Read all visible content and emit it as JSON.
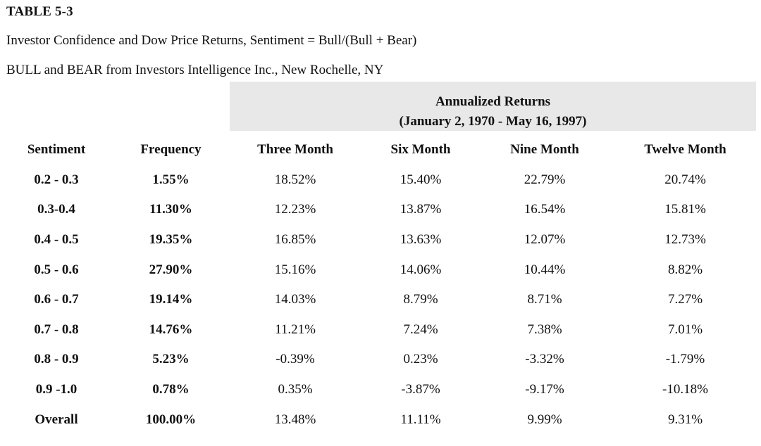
{
  "document": {
    "table_label": "TABLE 5-3",
    "caption": "Investor Confidence and Dow Price Returns, Sentiment = Bull/(Bull + Bear)",
    "source": "BULL and BEAR from Investors Intelligence Inc., New Rochelle, NY"
  },
  "table": {
    "group_header": {
      "line1": "Annualized Returns",
      "line2": "(January 2, 1970 - May 16, 1997)"
    },
    "columns": [
      "Sentiment",
      "Frequency",
      "Three Month",
      "Six Month",
      "Nine Month",
      "Twelve Month"
    ],
    "rows": [
      [
        "0.2 - 0.3",
        "1.55%",
        "18.52%",
        "15.40%",
        "22.79%",
        "20.74%"
      ],
      [
        "0.3-0.4",
        "11.30%",
        "12.23%",
        "13.87%",
        "16.54%",
        "15.81%"
      ],
      [
        "0.4 - 0.5",
        "19.35%",
        "16.85%",
        "13.63%",
        "12.07%",
        "12.73%"
      ],
      [
        "0.5 - 0.6",
        "27.90%",
        "15.16%",
        "14.06%",
        "10.44%",
        "8.82%"
      ],
      [
        "0.6 - 0.7",
        "19.14%",
        "14.03%",
        "8.79%",
        "8.71%",
        "7.27%"
      ],
      [
        "0.7 - 0.8",
        "14.76%",
        "11.21%",
        "7.24%",
        "7.38%",
        "7.01%"
      ],
      [
        "0.8 - 0.9",
        "5.23%",
        "-0.39%",
        "0.23%",
        "-3.32%",
        "-1.79%"
      ],
      [
        "0.9 -1.0",
        "0.78%",
        "0.35%",
        "-3.87%",
        "-9.17%",
        "-10.18%"
      ],
      [
        "Overall",
        "100.00%",
        "13.48%",
        "11.11%",
        "9.99%",
        "9.31%"
      ]
    ]
  }
}
